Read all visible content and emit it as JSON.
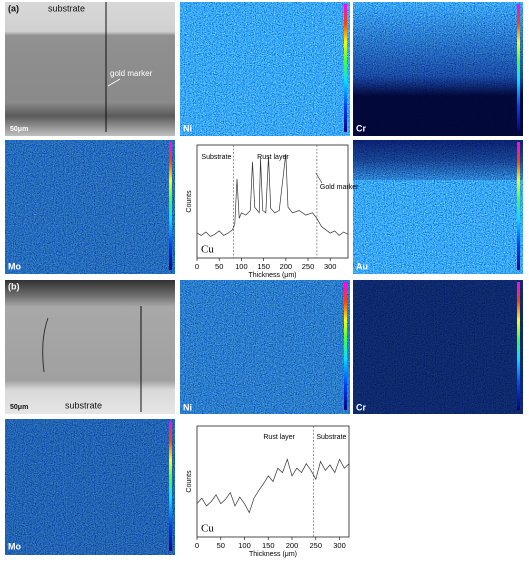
{
  "panels": {
    "a_sem": {
      "tag": "(a)",
      "top": "substrate",
      "marker": "gold marker",
      "scale": "50μm"
    },
    "a_ni": "Ni",
    "a_cr": "Cr",
    "a_mo": "Mo",
    "a_au": "Au",
    "b_sem": {
      "tag": "(b)",
      "bottom": "substrate",
      "scale": "50μm"
    },
    "b_ni": "Ni",
    "b_cr": "Cr",
    "b_mo": "Mo"
  },
  "chart_data": [
    {
      "type": "line",
      "xlabel": "Thickness (μm)",
      "ylabel": "Counts",
      "color": "#333333",
      "x": [
        0,
        10,
        20,
        30,
        40,
        50,
        60,
        70,
        80,
        85,
        90,
        95,
        100,
        110,
        120,
        125,
        130,
        140,
        143,
        148,
        155,
        161,
        166,
        175,
        185,
        200,
        205,
        215,
        230,
        245,
        260,
        270,
        280,
        290,
        300,
        310,
        320,
        330,
        340
      ],
      "values": [
        22,
        20,
        23,
        19,
        21,
        24,
        20,
        22,
        25,
        30,
        70,
        35,
        40,
        38,
        42,
        85,
        45,
        40,
        88,
        42,
        40,
        90,
        44,
        40,
        42,
        92,
        45,
        40,
        42,
        38,
        40,
        35,
        28,
        25,
        22,
        24,
        20,
        23,
        21
      ],
      "xlim": [
        0,
        340
      ],
      "xticks": [
        0,
        50,
        100,
        150,
        200,
        250,
        300
      ],
      "ylim": [
        0,
        100
      ],
      "boundaries": [
        82,
        270
      ],
      "annotations": [
        "Substrate",
        "Rust layer",
        "Gold marker",
        "Cu"
      ]
    },
    {
      "type": "line",
      "xlabel": "Thickness (μm)",
      "ylabel": "Counts",
      "color": "#333333",
      "x": [
        0,
        10,
        20,
        30,
        40,
        50,
        60,
        70,
        80,
        90,
        100,
        110,
        120,
        130,
        140,
        150,
        160,
        170,
        180,
        190,
        200,
        210,
        220,
        230,
        240,
        250,
        260,
        270,
        280,
        290,
        300,
        310,
        320
      ],
      "values": [
        30,
        35,
        28,
        32,
        38,
        30,
        34,
        40,
        28,
        36,
        30,
        22,
        35,
        42,
        48,
        55,
        50,
        62,
        58,
        70,
        55,
        62,
        58,
        66,
        60,
        52,
        68,
        60,
        65,
        58,
        70,
        62,
        66
      ],
      "xlim": [
        0,
        320
      ],
      "xticks": [
        0,
        50,
        100,
        150,
        200,
        250,
        300
      ],
      "ylim": [
        0,
        100
      ],
      "boundaries": [
        245
      ],
      "annotations": [
        "Rust layer",
        "Substrate",
        "Cu"
      ]
    }
  ]
}
